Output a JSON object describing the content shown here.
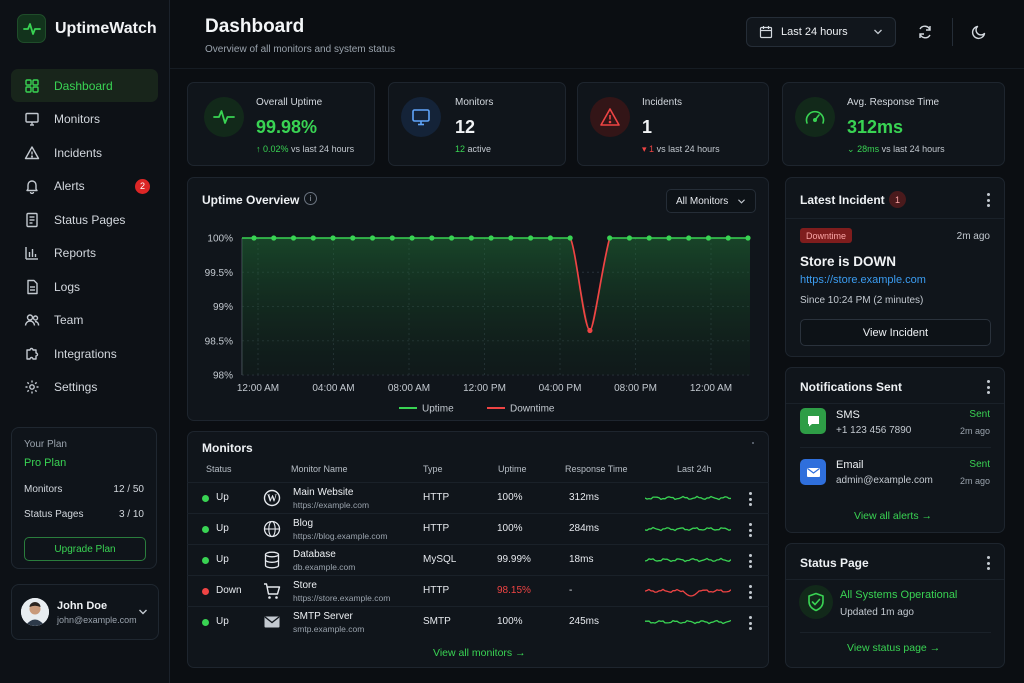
{
  "app": {
    "name": "UptimeWatch"
  },
  "sidebar": {
    "items": [
      {
        "label": "Dashboard"
      },
      {
        "label": "Monitors"
      },
      {
        "label": "Incidents"
      },
      {
        "label": "Alerts",
        "badge": "2"
      },
      {
        "label": "Status Pages"
      },
      {
        "label": "Reports"
      },
      {
        "label": "Logs"
      },
      {
        "label": "Team"
      },
      {
        "label": "Integrations"
      },
      {
        "label": "Settings"
      }
    ],
    "plan": {
      "heading": "Your Plan",
      "name": "Pro Plan",
      "monitors_label": "Monitors",
      "monitors_value": "12 / 50",
      "status_pages_label": "Status Pages",
      "status_pages_value": "3 / 10",
      "upgrade_label": "Upgrade Plan"
    },
    "user": {
      "name": "John Doe",
      "email": "john@example.com"
    }
  },
  "header": {
    "title": "Dashboard",
    "subtitle": "Overview of all monitors and system status",
    "range": "Last 24 hours"
  },
  "stats": {
    "uptime": {
      "label": "Overall Uptime",
      "value": "99.98%",
      "delta": "0.02%",
      "delta_suffix": " vs last 24 hours"
    },
    "monitors": {
      "label": "Monitors",
      "value": "12",
      "active_count": "12",
      "active_label": " active"
    },
    "incidents": {
      "label": "Incidents",
      "value": "1",
      "delta": "1",
      "delta_suffix": " vs last 24 hours"
    },
    "response": {
      "label": "Avg. Response Time",
      "value": "312ms",
      "delta": "28ms",
      "delta_suffix": " vs last 24 hours"
    }
  },
  "uptime_overview": {
    "title": "Uptime Overview",
    "filter": "All Monitors"
  },
  "chart_data": {
    "type": "line",
    "x_ticks": [
      "12:00 AM",
      "04:00 AM",
      "08:00 AM",
      "12:00 PM",
      "04:00 PM",
      "08:00 PM",
      "12:00 AM"
    ],
    "y_ticks": [
      "100%",
      "99.5%",
      "99%",
      "98.5%",
      "98%"
    ],
    "ylim": [
      98,
      100
    ],
    "series": [
      {
        "name": "Uptime",
        "color": "#39d353",
        "values": [
          100,
          100,
          100,
          100,
          100,
          100,
          100,
          100,
          100,
          100,
          100,
          100,
          100,
          100,
          100,
          100,
          100,
          98.65,
          100,
          100,
          100,
          100,
          100,
          100,
          100,
          100
        ]
      }
    ],
    "downtime": {
      "name": "Downtime",
      "color": "#ef4444",
      "from_index": 16,
      "to_index": 18,
      "min": 98.65
    },
    "legend_position": "bottom",
    "grid": true
  },
  "monitors_table": {
    "title": "Monitors",
    "columns": [
      "Status",
      "Monitor Name",
      "Type",
      "Uptime",
      "Response Time",
      "Last 24h"
    ],
    "rows": [
      {
        "status": "Up",
        "name": "Main Website",
        "url": "https://example.com",
        "type": "HTTP",
        "uptime": "100%",
        "response": "312ms",
        "icon": "wordpress-icon"
      },
      {
        "status": "Up",
        "name": "Blog",
        "url": "https://blog.example.com",
        "type": "HTTP",
        "uptime": "100%",
        "response": "284ms",
        "icon": "globe-icon"
      },
      {
        "status": "Up",
        "name": "Database",
        "url": "db.example.com",
        "type": "MySQL",
        "uptime": "99.99%",
        "response": "18ms",
        "icon": "database-icon"
      },
      {
        "status": "Down",
        "name": "Store",
        "url": "https://store.example.com",
        "type": "HTTP",
        "uptime": "98.15%",
        "response": "-",
        "icon": "cart-icon"
      },
      {
        "status": "Up",
        "name": "SMTP Server",
        "url": "smtp.example.com",
        "type": "SMTP",
        "uptime": "100%",
        "response": "245ms",
        "icon": "mail-icon"
      }
    ],
    "view_all": "View all monitors →"
  },
  "latest_incident": {
    "title": "Latest Incident",
    "count": "1",
    "badge": "Downtime",
    "time": "2m ago",
    "headline": "Store is DOWN",
    "url": "https://store.example.com",
    "since": "Since 10:24 PM (2 minutes)",
    "button": "View Incident"
  },
  "notifications": {
    "title": "Notifications Sent",
    "items": [
      {
        "channel": "SMS",
        "target": "+1 123 456 7890",
        "status": "Sent",
        "time": "2m ago"
      },
      {
        "channel": "Email",
        "target": "admin@example.com",
        "status": "Sent",
        "time": "2m ago"
      }
    ],
    "view_all": "View all alerts →"
  },
  "status_page": {
    "title": "Status Page",
    "state": "All Systems Operational",
    "updated": "Updated 1m ago",
    "view": "View status page →"
  }
}
